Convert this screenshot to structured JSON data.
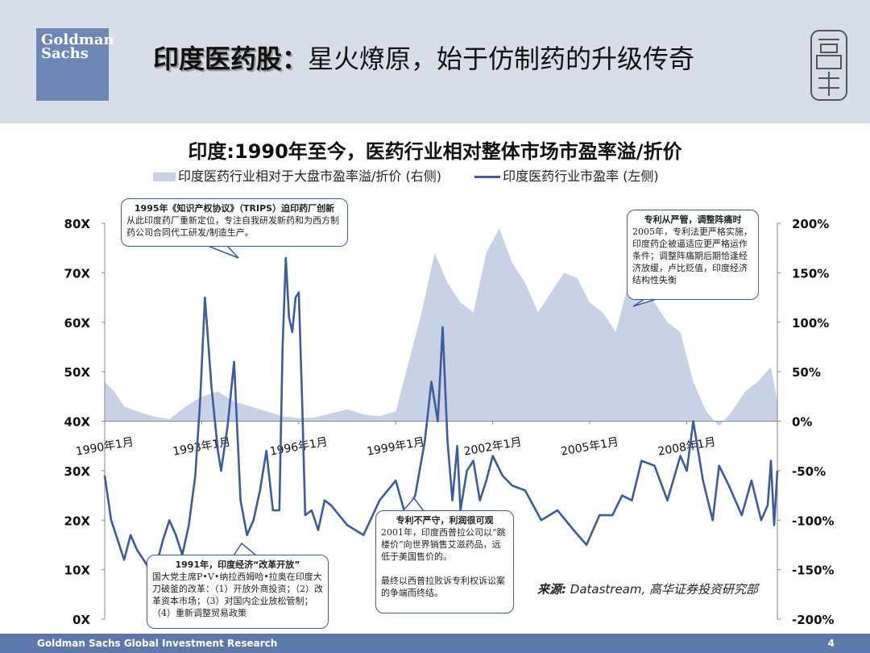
{
  "header": {
    "logo_text_line1": "Goldman",
    "logo_text_line2": "Sachs",
    "title_bold": "印度医药股：",
    "title_rest": "星火燎原，始于仿制药的升级传奇",
    "seal_text": "高华"
  },
  "chart_data": {
    "type": "line",
    "title": "印度:1990年至今，医药行业相对整体市场市盈率溢/折价",
    "legend": [
      "印度医药行业相对于大盘市盈率溢/折价 (右侧)",
      "印度医药行业市盈率 (左侧)"
    ],
    "left_axis": {
      "ticks": [
        "80X",
        "70X",
        "60X",
        "50X",
        "40X",
        "30X",
        "20X",
        "10X",
        "0X"
      ],
      "ylim": [
        0,
        80
      ]
    },
    "right_axis": {
      "ticks": [
        "200%",
        "150%",
        "100%",
        "50%",
        "0%",
        "-50%",
        "-100%",
        "-150%",
        "-200%"
      ],
      "ylim": [
        -200,
        200
      ]
    },
    "x_ticks": [
      "1990年1月",
      "1993年1月",
      "1996年1月",
      "1999年1月",
      "2002年1月",
      "2005年1月",
      "2008年1月"
    ],
    "x_range": [
      1990.0,
      2010.8
    ],
    "series": [
      {
        "name": "印度医药行业市盈率 (左侧)",
        "axis": "left",
        "color": "#3d5c99",
        "x": [
          1990.0,
          1990.2,
          1990.4,
          1990.6,
          1990.8,
          1991.0,
          1991.2,
          1991.4,
          1991.6,
          1991.8,
          1992.0,
          1992.2,
          1992.4,
          1992.6,
          1992.8,
          1992.95,
          1993.1,
          1993.3,
          1993.5,
          1993.6,
          1993.8,
          1994.0,
          1994.2,
          1994.4,
          1994.6,
          1994.8,
          1995.0,
          1995.2,
          1995.4,
          1995.5,
          1995.6,
          1995.7,
          1995.8,
          1995.9,
          1996.0,
          1996.1,
          1996.2,
          1996.4,
          1996.6,
          1996.8,
          1997.0,
          1997.5,
          1998.0,
          1998.5,
          1999.0,
          1999.3,
          1999.6,
          1999.9,
          2000.1,
          2000.3,
          2000.45,
          2000.6,
          2000.75,
          2000.9,
          2001.0,
          2001.2,
          2001.4,
          2001.6,
          2001.8,
          2002.0,
          2002.3,
          2002.6,
          2003.0,
          2003.5,
          2004.0,
          2004.5,
          2004.9,
          2005.3,
          2005.7,
          2006.0,
          2006.3,
          2006.6,
          2007.0,
          2007.4,
          2007.8,
          2008.0,
          2008.2,
          2008.5,
          2008.8,
          2009.0,
          2009.3,
          2009.7,
          2010.0,
          2010.3,
          2010.5,
          2010.6,
          2010.7,
          2010.8
        ],
        "values": [
          29,
          20,
          16,
          12,
          17,
          14,
          12,
          10,
          11,
          16,
          20,
          17,
          13,
          19,
          29,
          44,
          65,
          47,
          34,
          30,
          39,
          52,
          24,
          17,
          20,
          26,
          34,
          22,
          22,
          55,
          73,
          61,
          58,
          65,
          66,
          45,
          21,
          22,
          18,
          24,
          23,
          19,
          17,
          24,
          28,
          21,
          25,
          36,
          48,
          40,
          59,
          36,
          24,
          35,
          22,
          30,
          32,
          24,
          28,
          33,
          29,
          27,
          26,
          20,
          22,
          18,
          15,
          21,
          21,
          25,
          24,
          32,
          31,
          24,
          33,
          30,
          40,
          28,
          20,
          31,
          27,
          21,
          28,
          20,
          23,
          32,
          19,
          30
        ]
      },
      {
        "name": "印度医药行业相对于大盘市盈率溢/折价 (右侧)",
        "axis": "right",
        "color": "#c9d1e6",
        "x": [
          1990.0,
          1990.3,
          1990.6,
          1991.0,
          1991.5,
          1992.0,
          1992.5,
          1993.0,
          1993.5,
          1994.0,
          1994.5,
          1995.0,
          1995.5,
          1996.0,
          1996.5,
          1997.0,
          1997.5,
          1998.0,
          1998.5,
          1999.0,
          1999.4,
          1999.8,
          2000.2,
          2000.6,
          2001.0,
          2001.4,
          2001.8,
          2002.2,
          2002.6,
          2003.0,
          2003.4,
          2003.8,
          2004.2,
          2004.6,
          2005.0,
          2005.4,
          2005.8,
          2006.2,
          2006.6,
          2007.0,
          2007.4,
          2007.8,
          2008.2,
          2008.6,
          2009.0,
          2009.4,
          2009.8,
          2010.2,
          2010.6,
          2010.8
        ],
        "values": [
          40,
          30,
          15,
          10,
          5,
          2,
          15,
          25,
          30,
          20,
          15,
          10,
          5,
          3,
          4,
          8,
          12,
          7,
          5,
          10,
          60,
          110,
          170,
          140,
          120,
          110,
          170,
          195,
          160,
          140,
          110,
          130,
          150,
          145,
          120,
          110,
          90,
          140,
          160,
          120,
          100,
          90,
          40,
          10,
          -5,
          10,
          30,
          40,
          55,
          20
        ]
      }
    ]
  },
  "callouts": {
    "c1995": {
      "title": "1995年《知识产权协议》（TRIPS）迫印药厂创新",
      "body": "从此印度药厂重新定位，专注自我研发新药和为西方制药公司合同代工研发/制造生产。"
    },
    "c2005": {
      "title": "专利从严管，调整阵痛时",
      "body": "2005年，专利法更严格实施，印度药企被逼适应更严格运作条件；调整阵痛期后期恰逢经济放缓，卢比贬值，印度经济结构性失衡"
    },
    "c2001": {
      "title": "专利不严守，利润很可观",
      "body1": "2001年，印度西普拉公司以“跳楼价”向世界销售艾滋药品，远低于美国售价的。",
      "body2": "最终以西普拉败诉专利权诉讼案的争端而终结。"
    },
    "c1991": {
      "title": "1991年，印度经济“改革开放”",
      "body": "国大党主席P•V•纳拉西姆哈•拉奥在印度大刀破釜的改革：（1）开放外商投资；（2）改革资本市场；（3）对国内企业放松管制；（4）重新调整贸易政策"
    }
  },
  "source": {
    "label": "来源:",
    "text": " Datastream, 高华证券投资研究部"
  },
  "footer": {
    "left": "Goldman Sachs Global Investment Research",
    "page": "4"
  }
}
